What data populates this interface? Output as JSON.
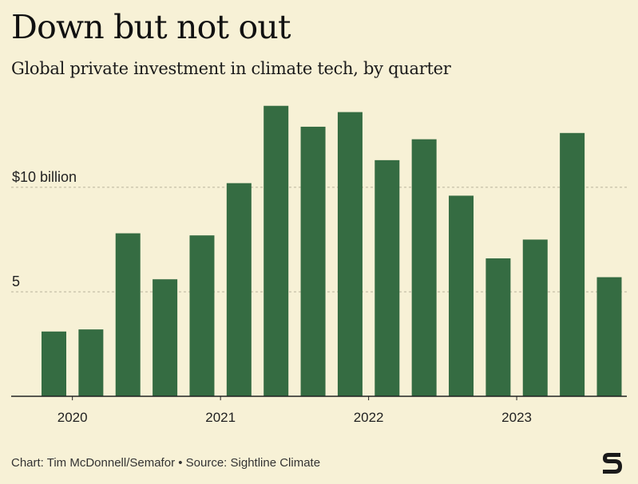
{
  "header": {
    "title": "Down but not out",
    "subtitle": "Global private investment in climate tech, by quarter"
  },
  "footer": {
    "credit": "Chart: Tim McDonnell/Semafor • Source: Sightline Climate"
  },
  "logo": {
    "icon": "semafor-s-logo-icon"
  },
  "colors": {
    "background": "#f7f1d6",
    "bar": "#356c42",
    "gridline": "#b9b49c",
    "baseline": "#222222"
  },
  "chart_data": {
    "type": "bar",
    "title": "Down but not out",
    "subtitle": "Global private investment in climate tech, by quarter",
    "xlabel": "",
    "ylabel": "",
    "categories": [
      "2020 Q1",
      "2020 Q2",
      "2020 Q3",
      "2020 Q4",
      "2021 Q1",
      "2021 Q2",
      "2021 Q3",
      "2021 Q4",
      "2022 Q1",
      "2022 Q2",
      "2022 Q3",
      "2022 Q4",
      "2023 Q1",
      "2023 Q2",
      "2023 Q3",
      "2023 Q4"
    ],
    "values": [
      3.1,
      3.2,
      7.8,
      5.6,
      7.7,
      10.2,
      13.9,
      12.9,
      13.6,
      11.3,
      12.3,
      9.6,
      6.6,
      7.5,
      12.6,
      5.7
    ],
    "unit": "billion USD",
    "ylim": [
      0,
      14.5
    ],
    "y_ticks": [
      {
        "value": 10,
        "label": "$10 billion"
      },
      {
        "value": 5,
        "label": "5"
      }
    ],
    "x_ticks": [
      {
        "label": "2020",
        "index": 0
      },
      {
        "label": "2021",
        "index": 4
      },
      {
        "label": "2022",
        "index": 8
      },
      {
        "label": "2023",
        "index": 12
      }
    ],
    "grid": "horizontal dotted",
    "legend": "none"
  }
}
